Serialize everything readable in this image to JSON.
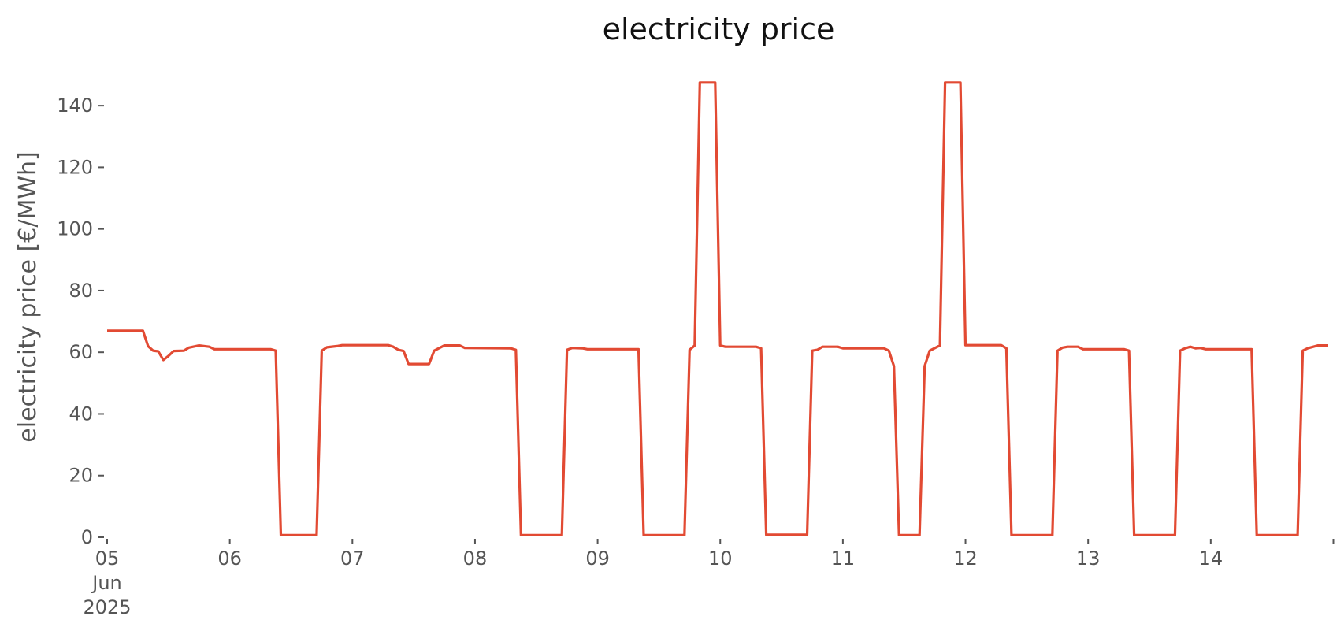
{
  "chart_data": {
    "type": "line",
    "title": "electricity price",
    "xlabel": "",
    "ylabel": "electricity price [€/MWh]",
    "ylim": [
      0,
      150
    ],
    "xlim": [
      "2025-06-05",
      "2025-06-14 23:00"
    ],
    "grid": false,
    "colors": {
      "line": "#E24A33",
      "tick": "#555555"
    },
    "y_ticks": [
      0,
      20,
      40,
      60,
      80,
      100,
      120,
      140
    ],
    "x_ticks": [
      {
        "date": "2025-06-05",
        "label": "05",
        "sublabels": [
          "Jun",
          "2025"
        ]
      },
      {
        "date": "2025-06-06",
        "label": "06"
      },
      {
        "date": "2025-06-07",
        "label": "07"
      },
      {
        "date": "2025-06-08",
        "label": "08"
      },
      {
        "date": "2025-06-09",
        "label": "09"
      },
      {
        "date": "2025-06-10",
        "label": "10"
      },
      {
        "date": "2025-06-11",
        "label": "11"
      },
      {
        "date": "2025-06-12",
        "label": "12"
      },
      {
        "date": "2025-06-13",
        "label": "13"
      },
      {
        "date": "2025-06-14",
        "label": "14"
      },
      {
        "date": "2025-06-15",
        "label": ""
      }
    ],
    "series": [
      {
        "points": [
          [
            "2025-06-05 00:00",
            67
          ],
          [
            "2025-06-05 07:00",
            67
          ],
          [
            "2025-06-05 08:00",
            62
          ],
          [
            "2025-06-05 09:00",
            60.5
          ],
          [
            "2025-06-05 10:00",
            60.3
          ],
          [
            "2025-06-05 11:00",
            57.5
          ],
          [
            "2025-06-05 12:00",
            58.8
          ],
          [
            "2025-06-05 13:00",
            60.4
          ],
          [
            "2025-06-05 15:00",
            60.5
          ],
          [
            "2025-06-05 16:00",
            61.5
          ],
          [
            "2025-06-05 18:00",
            62.2
          ],
          [
            "2025-06-05 20:00",
            61.8
          ],
          [
            "2025-06-05 21:00",
            61
          ],
          [
            "2025-06-06 08:00",
            61
          ],
          [
            "2025-06-06 09:00",
            60.5
          ],
          [
            "2025-06-06 10:00",
            0.7
          ],
          [
            "2025-06-06 17:00",
            0.7
          ],
          [
            "2025-06-06 18:00",
            60.5
          ],
          [
            "2025-06-06 19:00",
            61.6
          ],
          [
            "2025-06-06 21:00",
            62
          ],
          [
            "2025-06-06 22:00",
            62.3
          ],
          [
            "2025-06-07 07:00",
            62.3
          ],
          [
            "2025-06-07 08:00",
            61.8
          ],
          [
            "2025-06-07 09:00",
            60.8
          ],
          [
            "2025-06-07 10:00",
            60.4
          ],
          [
            "2025-06-07 11:00",
            56.2
          ],
          [
            "2025-06-07 15:00",
            56.2
          ],
          [
            "2025-06-07 16:00",
            60.5
          ],
          [
            "2025-06-07 18:00",
            62.2
          ],
          [
            "2025-06-07 21:00",
            62.2
          ],
          [
            "2025-06-07 22:00",
            61.4
          ],
          [
            "2025-06-08 07:00",
            61.3
          ],
          [
            "2025-06-08 08:00",
            60.8
          ],
          [
            "2025-06-08 09:00",
            0.7
          ],
          [
            "2025-06-08 17:00",
            0.7
          ],
          [
            "2025-06-08 18:00",
            60.8
          ],
          [
            "2025-06-08 19:00",
            61.4
          ],
          [
            "2025-06-08 21:00",
            61.3
          ],
          [
            "2025-06-08 22:00",
            61
          ],
          [
            "2025-06-09 08:00",
            61
          ],
          [
            "2025-06-09 09:00",
            0.7
          ],
          [
            "2025-06-09 17:00",
            0.7
          ],
          [
            "2025-06-09 18:00",
            60.8
          ],
          [
            "2025-06-09 19:00",
            62.2
          ],
          [
            "2025-06-09 20:00",
            147.5
          ],
          [
            "2025-06-09 23:00",
            147.5
          ],
          [
            "2025-06-10 00:00",
            62.2
          ],
          [
            "2025-06-10 01:00",
            61.8
          ],
          [
            "2025-06-10 07:00",
            61.8
          ],
          [
            "2025-06-10 08:00",
            61.3
          ],
          [
            "2025-06-10 09:00",
            0.8
          ],
          [
            "2025-06-10 17:00",
            0.8
          ],
          [
            "2025-06-10 18:00",
            60.5
          ],
          [
            "2025-06-10 19:00",
            60.8
          ],
          [
            "2025-06-10 20:00",
            61.8
          ],
          [
            "2025-06-10 23:00",
            61.8
          ],
          [
            "2025-06-11 00:00",
            61.3
          ],
          [
            "2025-06-11 08:00",
            61.3
          ],
          [
            "2025-06-11 09:00",
            60.5
          ],
          [
            "2025-06-11 10:00",
            55.5
          ],
          [
            "2025-06-11 11:00",
            0.7
          ],
          [
            "2025-06-11 15:00",
            0.7
          ],
          [
            "2025-06-11 16:00",
            55.5
          ],
          [
            "2025-06-11 17:00",
            60.5
          ],
          [
            "2025-06-11 19:00",
            62.2
          ],
          [
            "2025-06-11 20:00",
            147.5
          ],
          [
            "2025-06-11 23:00",
            147.5
          ],
          [
            "2025-06-12 00:00",
            62.3
          ],
          [
            "2025-06-12 07:00",
            62.3
          ],
          [
            "2025-06-12 08:00",
            61.3
          ],
          [
            "2025-06-12 09:00",
            0.7
          ],
          [
            "2025-06-12 17:00",
            0.7
          ],
          [
            "2025-06-12 18:00",
            60.5
          ],
          [
            "2025-06-12 19:00",
            61.5
          ],
          [
            "2025-06-12 20:00",
            61.8
          ],
          [
            "2025-06-12 22:00",
            61.8
          ],
          [
            "2025-06-12 23:00",
            61
          ],
          [
            "2025-06-13 07:00",
            61
          ],
          [
            "2025-06-13 08:00",
            60.5
          ],
          [
            "2025-06-13 09:00",
            0.7
          ],
          [
            "2025-06-13 17:00",
            0.7
          ],
          [
            "2025-06-13 18:00",
            60.5
          ],
          [
            "2025-06-13 19:00",
            61.3
          ],
          [
            "2025-06-13 20:00",
            61.8
          ],
          [
            "2025-06-13 21:00",
            61.3
          ],
          [
            "2025-06-13 22:00",
            61.4
          ],
          [
            "2025-06-13 23:00",
            61
          ],
          [
            "2025-06-14 08:00",
            61
          ],
          [
            "2025-06-14 09:00",
            0.7
          ],
          [
            "2025-06-14 17:00",
            0.7
          ],
          [
            "2025-06-14 18:00",
            60.5
          ],
          [
            "2025-06-14 19:00",
            61.3
          ],
          [
            "2025-06-14 21:00",
            62.2
          ],
          [
            "2025-06-14 23:00",
            62.2
          ]
        ]
      }
    ]
  }
}
